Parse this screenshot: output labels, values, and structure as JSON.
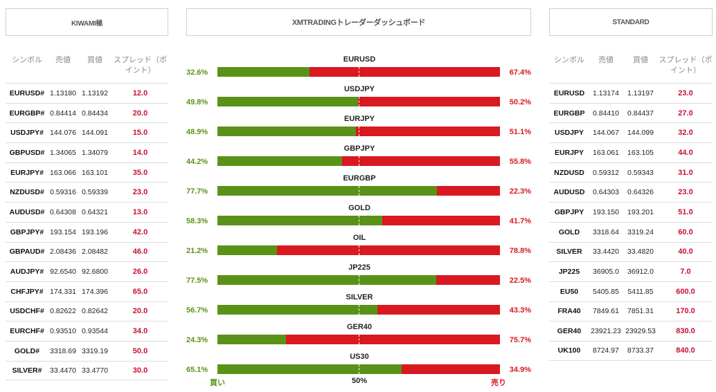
{
  "headers": {
    "left": "KIWAMI極",
    "center": "XMTRADINGトレーダーダッシュボード",
    "right": "STANDARD"
  },
  "columns": {
    "symbol": "シンボル",
    "bid": "売値",
    "ask": "買値",
    "spread": "スプレッド（ポイント）"
  },
  "kiwami_rows": [
    {
      "symbol": "EURUSD#",
      "bid": "1.13180",
      "ask": "1.13192",
      "spread": "12.0"
    },
    {
      "symbol": "EURGBP#",
      "bid": "0.84414",
      "ask": "0.84434",
      "spread": "20.0"
    },
    {
      "symbol": "USDJPY#",
      "bid": "144.076",
      "ask": "144.091",
      "spread": "15.0"
    },
    {
      "symbol": "GBPUSD#",
      "bid": "1.34065",
      "ask": "1.34079",
      "spread": "14.0"
    },
    {
      "symbol": "EURJPY#",
      "bid": "163.066",
      "ask": "163.101",
      "spread": "35.0"
    },
    {
      "symbol": "NZDUSD#",
      "bid": "0.59316",
      "ask": "0.59339",
      "spread": "23.0"
    },
    {
      "symbol": "AUDUSD#",
      "bid": "0.64308",
      "ask": "0.64321",
      "spread": "13.0"
    },
    {
      "symbol": "GBPJPY#",
      "bid": "193.154",
      "ask": "193.196",
      "spread": "42.0"
    },
    {
      "symbol": "GBPAUD#",
      "bid": "2.08436",
      "ask": "2.08482",
      "spread": "46.0"
    },
    {
      "symbol": "AUDJPY#",
      "bid": "92.6540",
      "ask": "92.6800",
      "spread": "26.0"
    },
    {
      "symbol": "CHFJPY#",
      "bid": "174.331",
      "ask": "174.396",
      "spread": "65.0"
    },
    {
      "symbol": "USDCHF#",
      "bid": "0.82622",
      "ask": "0.82642",
      "spread": "20.0"
    },
    {
      "symbol": "EURCHF#",
      "bid": "0.93510",
      "ask": "0.93544",
      "spread": "34.0"
    },
    {
      "symbol": "GOLD#",
      "bid": "3318.69",
      "ask": "3319.19",
      "spread": "50.0"
    },
    {
      "symbol": "SILVER#",
      "bid": "33.4470",
      "ask": "33.4770",
      "spread": "30.0"
    }
  ],
  "standard_rows": [
    {
      "symbol": "EURUSD",
      "bid": "1.13174",
      "ask": "1.13197",
      "spread": "23.0"
    },
    {
      "symbol": "EURGBP",
      "bid": "0.84410",
      "ask": "0.84437",
      "spread": "27.0"
    },
    {
      "symbol": "USDJPY",
      "bid": "144.067",
      "ask": "144.099",
      "spread": "32.0"
    },
    {
      "symbol": "EURJPY",
      "bid": "163.061",
      "ask": "163.105",
      "spread": "44.0"
    },
    {
      "symbol": "NZDUSD",
      "bid": "0.59312",
      "ask": "0.59343",
      "spread": "31.0"
    },
    {
      "symbol": "AUDUSD",
      "bid": "0.64303",
      "ask": "0.64326",
      "spread": "23.0"
    },
    {
      "symbol": "GBPJPY",
      "bid": "193.150",
      "ask": "193.201",
      "spread": "51.0"
    },
    {
      "symbol": "GOLD",
      "bid": "3318.64",
      "ask": "3319.24",
      "spread": "60.0"
    },
    {
      "symbol": "SILVER",
      "bid": "33.4420",
      "ask": "33.4820",
      "spread": "40.0"
    },
    {
      "symbol": "JP225",
      "bid": "36905.0",
      "ask": "36912.0",
      "spread": "7.0"
    },
    {
      "symbol": "EU50",
      "bid": "5405.85",
      "ask": "5411.85",
      "spread": "600.0"
    },
    {
      "symbol": "FRA40",
      "bid": "7849.61",
      "ask": "7851.31",
      "spread": "170.0"
    },
    {
      "symbol": "GER40",
      "bid": "23921.23",
      "ask": "23929.53",
      "spread": "830.0"
    },
    {
      "symbol": "UK100",
      "bid": "8724.97",
      "ask": "8733.37",
      "spread": "840.0"
    }
  ],
  "sentiment": [
    {
      "symbol": "EURUSD",
      "buy": 32.6,
      "buy_label": "32.6%",
      "sell_label": "67.4%"
    },
    {
      "symbol": "USDJPY",
      "buy": 49.8,
      "buy_label": "49.8%",
      "sell_label": "50.2%"
    },
    {
      "symbol": "EURJPY",
      "buy": 48.9,
      "buy_label": "48.9%",
      "sell_label": "51.1%"
    },
    {
      "symbol": "GBPJPY",
      "buy": 44.2,
      "buy_label": "44.2%",
      "sell_label": "55.8%"
    },
    {
      "symbol": "EURGBP",
      "buy": 77.7,
      "buy_label": "77.7%",
      "sell_label": "22.3%"
    },
    {
      "symbol": "GOLD",
      "buy": 58.3,
      "buy_label": "58.3%",
      "sell_label": "41.7%"
    },
    {
      "symbol": "OIL",
      "buy": 21.2,
      "buy_label": "21.2%",
      "sell_label": "78.8%"
    },
    {
      "symbol": "JP225",
      "buy": 77.5,
      "buy_label": "77.5%",
      "sell_label": "22.5%"
    },
    {
      "symbol": "SILVER",
      "buy": 56.7,
      "buy_label": "56.7%",
      "sell_label": "43.3%"
    },
    {
      "symbol": "GER40",
      "buy": 24.3,
      "buy_label": "24.3%",
      "sell_label": "75.7%"
    },
    {
      "symbol": "US30",
      "buy": 65.1,
      "buy_label": "65.1%",
      "sell_label": "34.9%"
    }
  ],
  "axis": {
    "buy": "買い",
    "mid": "50%",
    "sell": "売り"
  },
  "colors": {
    "buy": "#5a9217",
    "sell": "#d9181f",
    "spread": "#c8102e"
  }
}
